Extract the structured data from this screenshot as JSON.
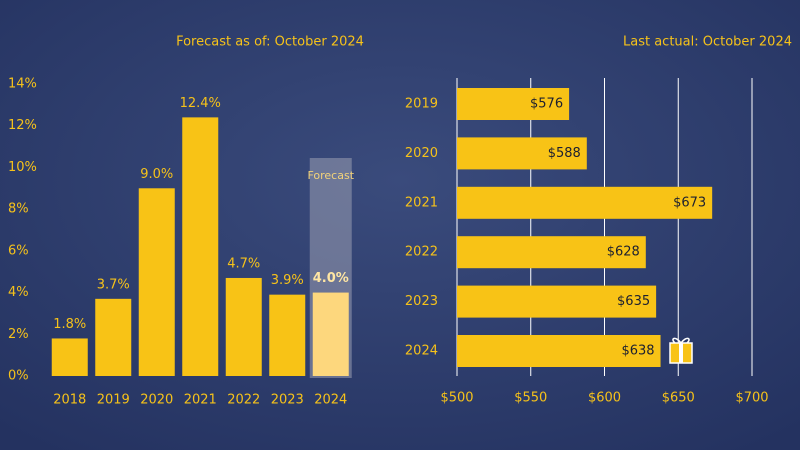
{
  "chart_data": [
    {
      "type": "bar",
      "subtitle": "Forecast as of: October 2024",
      "categories": [
        "2018",
        "2019",
        "2020",
        "2021",
        "2022",
        "2023",
        "2024"
      ],
      "values": [
        1.8,
        3.7,
        9.0,
        12.4,
        4.7,
        3.9,
        4.0
      ],
      "value_labels": [
        "1.8%",
        "3.7%",
        "9.0%",
        "12.4%",
        "4.7%",
        "3.9%",
        "4.0%"
      ],
      "colors": [
        "#f8c316",
        "#f8c316",
        "#f8c316",
        "#f8c316",
        "#f8c316",
        "#f8c316",
        "#fdd77d"
      ],
      "forecast_label": "Forecast",
      "ylim": [
        0,
        14
      ],
      "yticks": [
        {
          "value": 0,
          "label": "0%"
        },
        {
          "value": 2,
          "label": "2%"
        },
        {
          "value": 4,
          "label": "4%"
        },
        {
          "value": 6,
          "label": "6%"
        },
        {
          "value": 8,
          "label": "8%"
        },
        {
          "value": 10,
          "label": "10%"
        },
        {
          "value": 12,
          "label": "12%"
        },
        {
          "value": 14,
          "label": "14%"
        }
      ]
    },
    {
      "type": "hbar",
      "subtitle": "Last actual: October 2024",
      "categories": [
        "2019",
        "2020",
        "2021",
        "2022",
        "2023",
        "2024"
      ],
      "values": [
        576,
        588,
        673,
        628,
        635,
        638
      ],
      "value_labels": [
        "$576",
        "$588",
        "$673",
        "$628",
        "$635",
        "$638"
      ],
      "color": "#f8c316",
      "xlim": [
        500,
        700
      ],
      "xticks": [
        {
          "value": 500,
          "label": "$500"
        },
        {
          "value": 550,
          "label": "$550"
        },
        {
          "value": 600,
          "label": "$600"
        },
        {
          "value": 650,
          "label": "$650"
        },
        {
          "value": 700,
          "label": "$700"
        }
      ],
      "grid": true
    }
  ]
}
